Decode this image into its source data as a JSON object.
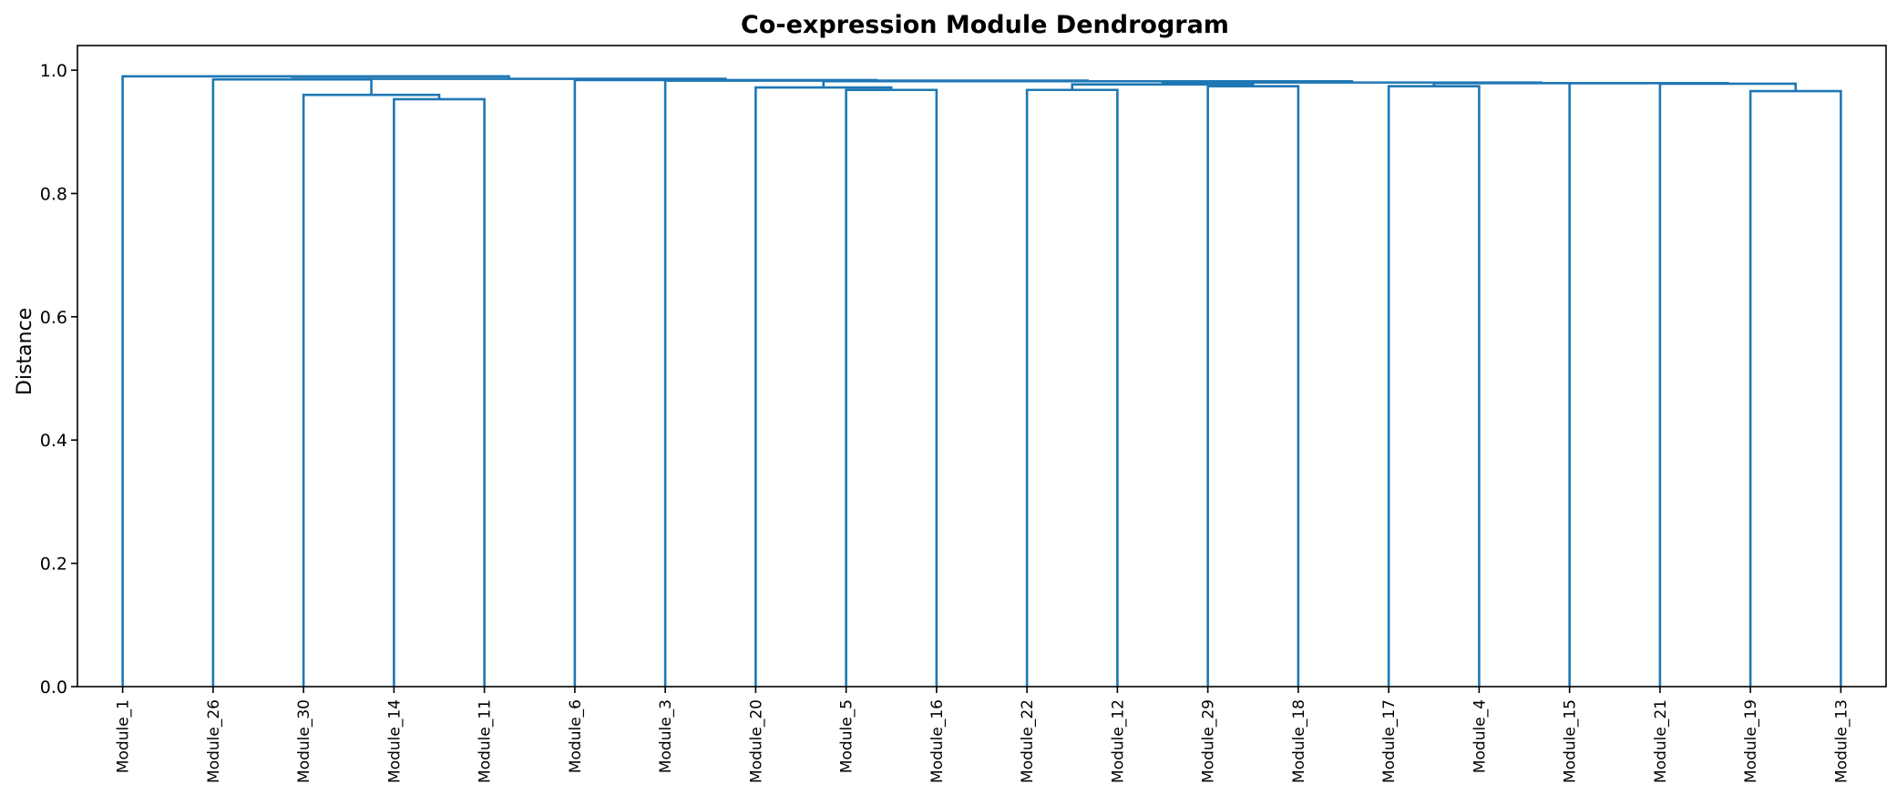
{
  "chart_data": {
    "type": "dendrogram",
    "title": "Co-expression Module Dendrogram",
    "xlabel": "",
    "ylabel": "Distance",
    "ylim": [
      0,
      1.04
    ],
    "yticks": [
      "0.0",
      "0.2",
      "0.4",
      "0.6",
      "0.8",
      "1.0"
    ],
    "grid": false,
    "color": "#1f77b4",
    "leaves": [
      "Module_1",
      "Module_26",
      "Module_30",
      "Module_14",
      "Module_11",
      "Module_6",
      "Module_3",
      "Module_20",
      "Module_5",
      "Module_16",
      "Module_22",
      "Module_12",
      "Module_29",
      "Module_18",
      "Module_17",
      "Module_4",
      "Module_15",
      "Module_21",
      "Module_19",
      "Module_13"
    ],
    "merges": [
      {
        "left": "L3",
        "right": "L4",
        "height": 0.953
      },
      {
        "left": "L2",
        "right": "M0",
        "height": 0.96
      },
      {
        "left": "L1",
        "right": "M1",
        "height": 0.985
      },
      {
        "left": "L8",
        "right": "L9",
        "height": 0.968
      },
      {
        "left": "L7",
        "right": "M3",
        "height": 0.972
      },
      {
        "left": "L10",
        "right": "L11",
        "height": 0.968
      },
      {
        "left": "L12",
        "right": "L13",
        "height": 0.974
      },
      {
        "left": "M5",
        "right": "M6",
        "height": 0.977
      },
      {
        "left": "L14",
        "right": "L15",
        "height": 0.974
      },
      {
        "left": "L18",
        "right": "L19",
        "height": 0.966
      },
      {
        "left": "L17",
        "right": "M9",
        "height": 0.978
      },
      {
        "left": "L16",
        "right": "M10",
        "height": 0.979
      },
      {
        "left": "M8",
        "right": "M11",
        "height": 0.979
      },
      {
        "left": "M7",
        "right": "M12",
        "height": 0.98
      },
      {
        "left": "M4",
        "right": "M13",
        "height": 0.982
      },
      {
        "left": "L6",
        "right": "M14",
        "height": 0.983
      },
      {
        "left": "L5",
        "right": "M15",
        "height": 0.984
      },
      {
        "left": "M2",
        "right": "M16",
        "height": 0.986
      },
      {
        "left": "L0",
        "right": "M17",
        "height": 0.99
      }
    ]
  }
}
